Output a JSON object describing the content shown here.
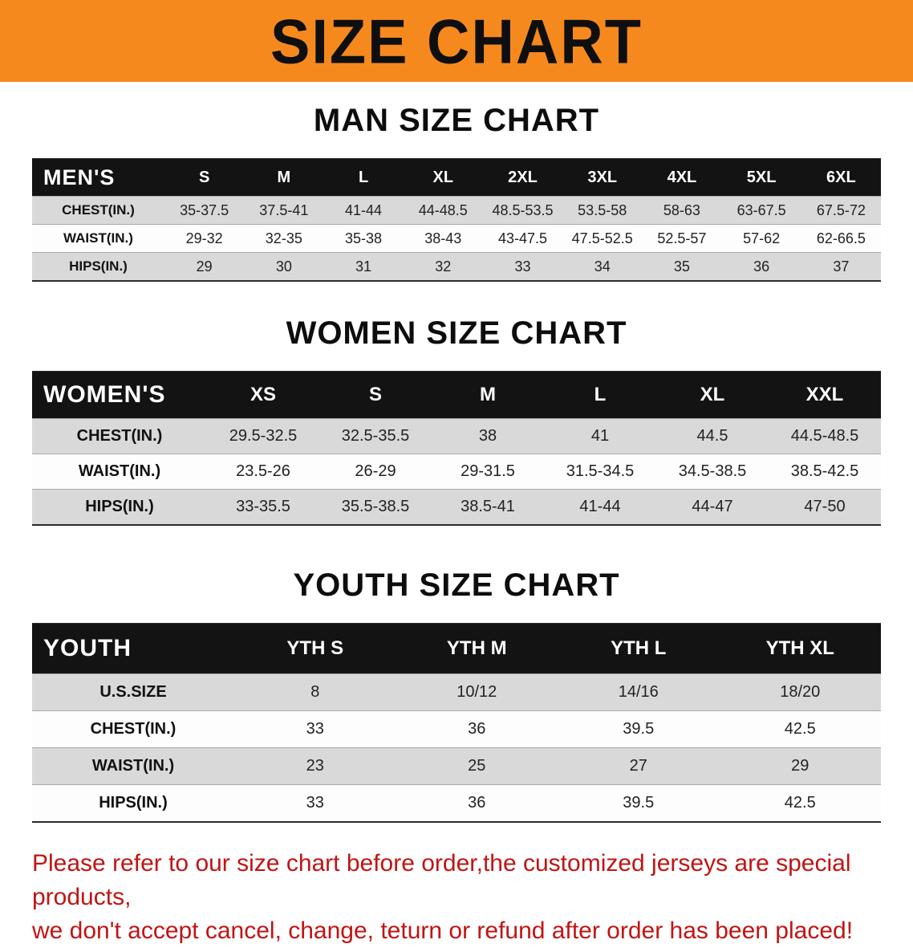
{
  "banner": {
    "title": "SIZE CHART",
    "bg_color": "#F6891E",
    "text_color": "#0f0f0f"
  },
  "sections": [
    {
      "heading": "MAN SIZE CHART",
      "table": {
        "header_label": "MEN'S",
        "columns": [
          "S",
          "M",
          "L",
          "XL",
          "2XL",
          "3XL",
          "4XL",
          "5XL",
          "6XL"
        ],
        "rows": [
          {
            "label": "CHEST(IN.)",
            "values": [
              "35-37.5",
              "37.5-41",
              "41-44",
              "44-48.5",
              "48.5-53.5",
              "53.5-58",
              "58-63",
              "63-67.5",
              "67.5-72"
            ]
          },
          {
            "label": "WAIST(IN.)",
            "values": [
              "29-32",
              "32-35",
              "35-38",
              "38-43",
              "43-47.5",
              "47.5-52.5",
              "52.5-57",
              "57-62",
              "62-66.5"
            ]
          },
          {
            "label": "HIPS(IN.)",
            "values": [
              "29",
              "30",
              "31",
              "32",
              "33",
              "34",
              "35",
              "36",
              "37"
            ]
          }
        ]
      }
    },
    {
      "heading": "WOMEN SIZE CHART",
      "table": {
        "header_label": "WOMEN'S",
        "columns": [
          "XS",
          "S",
          "M",
          "L",
          "XL",
          "XXL"
        ],
        "rows": [
          {
            "label": "CHEST(IN.)",
            "values": [
              "29.5-32.5",
              "32.5-35.5",
              "38",
              "41",
              "44.5",
              "44.5-48.5"
            ]
          },
          {
            "label": "WAIST(IN.)",
            "values": [
              "23.5-26",
              "26-29",
              "29-31.5",
              "31.5-34.5",
              "34.5-38.5",
              "38.5-42.5"
            ]
          },
          {
            "label": "HIPS(IN.)",
            "values": [
              "33-35.5",
              "35.5-38.5",
              "38.5-41",
              "41-44",
              "44-47",
              "47-50"
            ]
          }
        ]
      }
    },
    {
      "heading": "YOUTH SIZE CHART",
      "table": {
        "header_label": "YOUTH",
        "columns": [
          "YTH S",
          "YTH M",
          "YTH L",
          "YTH XL"
        ],
        "rows": [
          {
            "label": "U.S.SIZE",
            "values": [
              "8",
              "10/12",
              "14/16",
              "18/20"
            ]
          },
          {
            "label": "CHEST(IN.)",
            "values": [
              "33",
              "36",
              "39.5",
              "42.5"
            ]
          },
          {
            "label": "WAIST(IN.)",
            "values": [
              "23",
              "25",
              "27",
              "29"
            ]
          },
          {
            "label": "HIPS(IN.)",
            "values": [
              "33",
              "36",
              "39.5",
              "42.5"
            ]
          }
        ]
      }
    }
  ],
  "footer": {
    "line1": "Please refer to our size chart before order,the customized jerseys are special products,",
    "line2": "we don't accept cancel, change, teturn or refund after order has been placed!",
    "text_color": "#c11414"
  }
}
